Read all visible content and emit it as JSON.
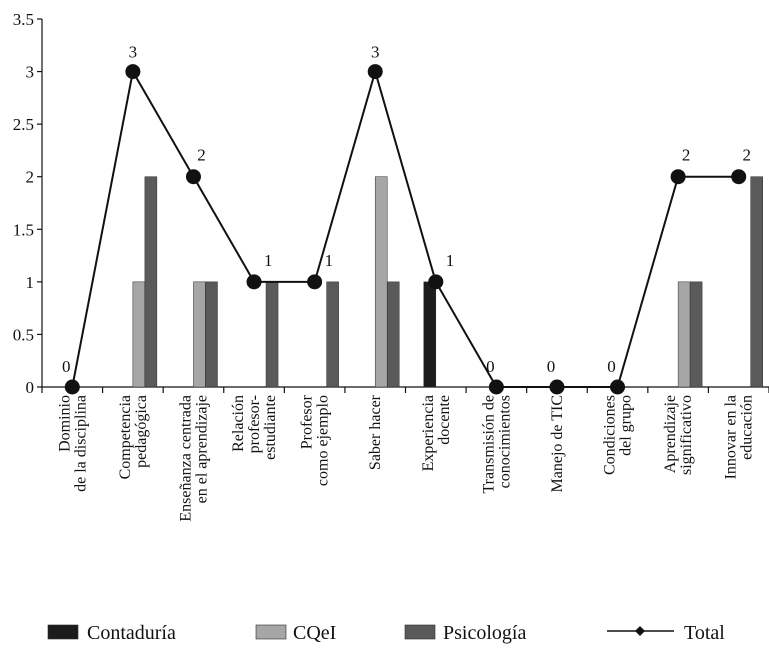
{
  "chart_data": {
    "type": "bar",
    "categories": [
      [
        "Dominio",
        "de la disciplina"
      ],
      [
        "Competencia",
        "pedagógica"
      ],
      [
        "Enseñanza centrada",
        "en el aprendizaje"
      ],
      [
        "Relación",
        "profesor-",
        "estudiante"
      ],
      [
        "Profesor",
        "como ejemplo"
      ],
      [
        "Saber hacer"
      ],
      [
        "Experiencia",
        "docente"
      ],
      [
        "Transmisión de",
        "conocimientos"
      ],
      [
        "Manejo de TIC"
      ],
      [
        "Condiciones",
        "del grupo"
      ],
      [
        "Aprendizaje",
        "significativo"
      ],
      [
        "Innovar en la",
        "educación"
      ]
    ],
    "series": [
      {
        "name": "Contaduría",
        "type": "bar",
        "color": "#1c1c1c",
        "values": [
          0,
          0,
          0,
          0,
          0,
          0,
          1,
          0,
          0,
          0,
          0,
          0
        ]
      },
      {
        "name": "CQeI",
        "type": "bar",
        "color": "#a6a6a6",
        "values": [
          0,
          1,
          1,
          0,
          0,
          2,
          0,
          0,
          0,
          0,
          1,
          0
        ]
      },
      {
        "name": "Psicología",
        "type": "bar",
        "color": "#5a5a5a",
        "values": [
          0,
          2,
          1,
          1,
          1,
          1,
          0,
          0,
          0,
          0,
          1,
          2
        ]
      },
      {
        "name": "Total",
        "type": "line",
        "color": "#111111",
        "values": [
          0,
          3,
          2,
          1,
          1,
          3,
          1,
          0,
          0,
          0,
          2,
          2
        ],
        "data_labels": [
          "0",
          "3",
          "2",
          "1",
          "1",
          "3",
          "1",
          "0",
          "0",
          "0",
          "2",
          "2"
        ]
      }
    ],
    "yticks": [
      "0",
      "0.5",
      "1",
      "1.5",
      "2",
      "2.5",
      "3",
      "3.5"
    ],
    "ylim": [
      0,
      3.5
    ],
    "grid": false,
    "legend": "bottom"
  }
}
